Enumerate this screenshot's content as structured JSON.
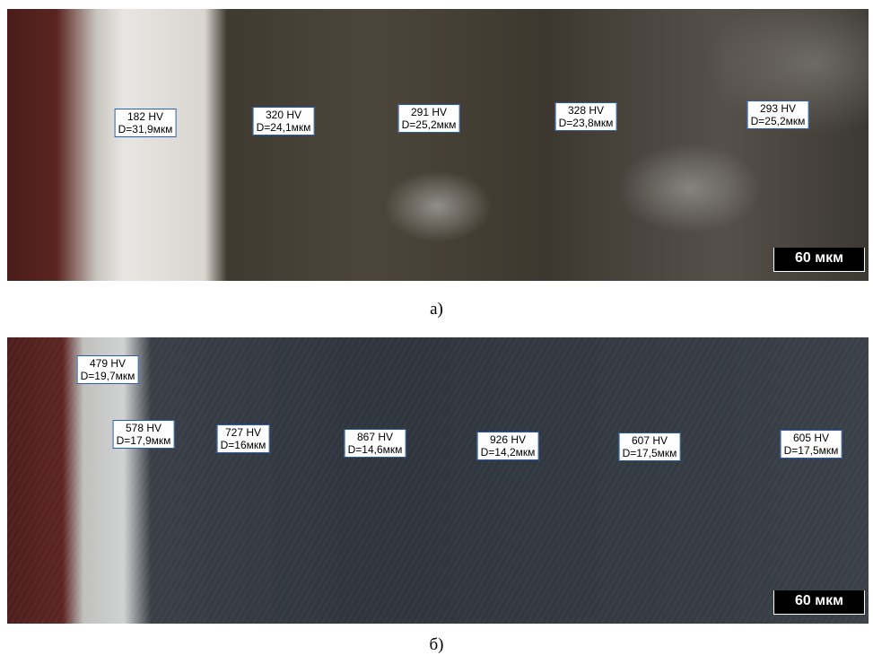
{
  "panels": [
    {
      "labels": [
        {
          "hv": "182 HV",
          "d": "D=31,9мкм"
        },
        {
          "hv": "320 HV",
          "d": "D=24,1мкм"
        },
        {
          "hv": "291 HV",
          "d": "D=25,2мкм"
        },
        {
          "hv": "328 HV",
          "d": "D=23,8мкм"
        },
        {
          "hv": "293 HV",
          "d": "D=25,2мкм"
        }
      ],
      "scale_bar": "60 мкм",
      "caption": "а)"
    },
    {
      "labels": [
        {
          "hv": "479 HV",
          "d": "D=19,7мкм"
        },
        {
          "hv": "578 HV",
          "d": "D=17,9мкм"
        },
        {
          "hv": "727 HV",
          "d": "D=16мкм"
        },
        {
          "hv": "867 HV",
          "d": "D=14,6мкм"
        },
        {
          "hv": "926 HV",
          "d": "D=14,2мкм"
        },
        {
          "hv": "607 HV",
          "d": "D=17,5мкм"
        },
        {
          "hv": "605 HV",
          "d": "D=17,5мкм"
        }
      ],
      "scale_bar": "60 мкм",
      "caption": "б)"
    }
  ]
}
